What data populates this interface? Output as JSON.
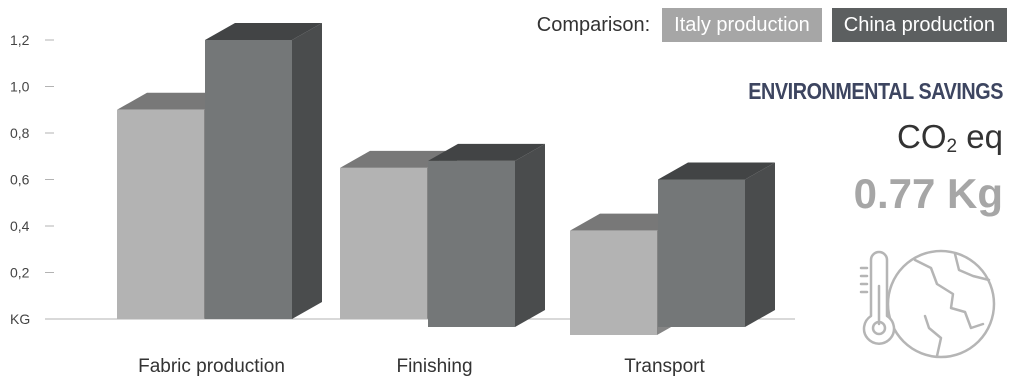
{
  "legend": {
    "title": "Comparison:",
    "items": [
      {
        "label": "Italy production",
        "color": "#a6a6a6"
      },
      {
        "label": "China production",
        "color": "#5c5f60"
      }
    ]
  },
  "panel": {
    "title": "ENVIRONMENTAL SAVINGS",
    "metric_prefix": "CO",
    "metric_subscript": "2",
    "metric_suffix": " eq",
    "value": "0.77 Kg",
    "icon": "thermometer-globe-icon"
  },
  "chart_data": {
    "type": "bar",
    "categories": [
      "Fabric production",
      "Finishing",
      "Transport"
    ],
    "ylabel": "KG",
    "yticks": [
      "0,2",
      "0,4",
      "0,6",
      "0,8",
      "1,0",
      "1,2"
    ],
    "ylim": [
      0,
      1.2
    ],
    "series": [
      {
        "name": "Italy production",
        "values": [
          0.9,
          0.65,
          0.38
        ],
        "color": "#a6a6a6"
      },
      {
        "name": "China production",
        "values": [
          1.2,
          0.68,
          0.6
        ],
        "color": "#5c5f60"
      }
    ]
  }
}
